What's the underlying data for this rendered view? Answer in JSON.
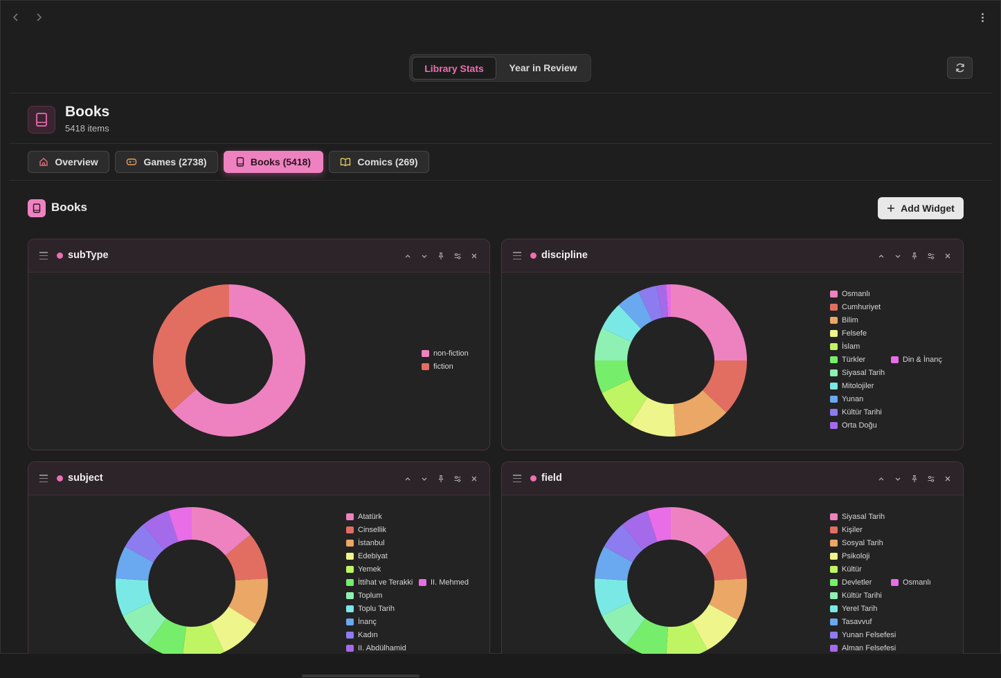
{
  "nav": {
    "back_icon": "chevron-left-icon",
    "forward_icon": "chevron-right-icon",
    "menu_icon": "more-vertical-icon"
  },
  "view_toggle": {
    "active": "Library Stats",
    "inactive": "Year in Review"
  },
  "header": {
    "title": "Books",
    "count": "5418 items"
  },
  "tabs": [
    {
      "label": "Overview",
      "icon": "home-icon"
    },
    {
      "label": "Games (2738)",
      "icon": "gamepad-icon"
    },
    {
      "label": "Books (5418)",
      "icon": "book-icon",
      "active": true
    },
    {
      "label": "Comics (269)",
      "icon": "open-book-icon"
    }
  ],
  "section": {
    "title": "Books",
    "add_widget": "Add Widget"
  },
  "widgets": [
    {
      "title": "subType",
      "chart_data": {
        "type": "pie",
        "donut": true,
        "categories": [
          "non-fiction",
          "fiction"
        ],
        "values": [
          63.5,
          36.5
        ],
        "colors": [
          "#ee82c0",
          "#e26e62"
        ]
      },
      "legend": [
        "non-fiction",
        "fiction"
      ]
    },
    {
      "title": "discipline",
      "chart_data": {
        "type": "pie",
        "donut": true,
        "categories": [
          "Osmanlı",
          "Cumhuriyet",
          "Bilim",
          "Felsefe",
          "İslam",
          "Türkler",
          "Siyasal Tarih",
          "Mitolojiler",
          "Yunan",
          "Kültür Tarihi",
          "Orta Doğu",
          "Din & İnanç"
        ],
        "values": [
          25,
          12,
          12,
          10,
          9,
          7,
          7,
          6,
          5,
          4,
          2,
          1
        ],
        "colors": [
          "#ee82c0",
          "#e26e62",
          "#eba766",
          "#eef58a",
          "#bff563",
          "#77ed6c",
          "#8ff0b4",
          "#7ae9e6",
          "#6aa8ef",
          "#8c7cef",
          "#a56ae9",
          "#e86de6"
        ]
      },
      "legend": [
        "Osmanlı",
        "Cumhuriyet",
        "Bilim",
        "Felsefe",
        "İslam",
        "Türkler",
        "Siyasal Tarih",
        "Mitolojiler",
        "Yunan",
        "Kültür Tarihi",
        "Orta Doğu"
      ],
      "legend_extra": "Din & İnanç"
    },
    {
      "title": "subject",
      "chart_data": {
        "type": "pie",
        "donut": true,
        "categories": [
          "Atatürk",
          "Cinsellik",
          "İstanbul",
          "Edebiyat",
          "Yemek",
          "İttihat ve Terakki",
          "Toplum",
          "Toplu Tarih",
          "İnanç",
          "Kadın",
          "II. Abdülhamid",
          "II. Mehmed"
        ],
        "values": [
          14,
          10,
          10,
          9,
          9,
          8,
          8,
          8,
          7,
          6,
          6,
          5
        ],
        "colors": [
          "#ee82c0",
          "#e26e62",
          "#eba766",
          "#eef58a",
          "#bff563",
          "#77ed6c",
          "#8ff0b4",
          "#7ae9e6",
          "#6aa8ef",
          "#8c7cef",
          "#a56ae9",
          "#e86de6"
        ]
      },
      "legend": [
        "Atatürk",
        "Cinsellik",
        "İstanbul",
        "Edebiyat",
        "Yemek",
        "İttihat ve Terakki",
        "Toplum",
        "Toplu Tarih",
        "İnanç",
        "Kadın",
        "II. Abdülhamid"
      ],
      "legend_extra": "II. Mehmed"
    },
    {
      "title": "field",
      "chart_data": {
        "type": "pie",
        "donut": true,
        "categories": [
          "Siyasal Tarih",
          "Kişiler",
          "Sosyal Tarih",
          "Psikoloji",
          "Kültür",
          "Devletler",
          "Kültür Tarihi",
          "Yerel Tarih",
          "Tasavvuf",
          "Yunan Felsefesi",
          "Alman Felsefesi",
          "Osmanlı"
        ],
        "values": [
          14,
          10,
          9,
          9,
          9,
          9,
          8,
          8,
          7,
          6,
          6,
          5
        ],
        "colors": [
          "#ee82c0",
          "#e26e62",
          "#eba766",
          "#eef58a",
          "#bff563",
          "#77ed6c",
          "#8ff0b4",
          "#7ae9e6",
          "#6aa8ef",
          "#8c7cef",
          "#a56ae9",
          "#e86de6"
        ]
      },
      "legend": [
        "Siyasal Tarih",
        "Kişiler",
        "Sosyal Tarih",
        "Psikoloji",
        "Kültür",
        "Devletler",
        "Kültür Tarihi",
        "Yerel Tarih",
        "Tasavvuf",
        "Yunan Felsefesi",
        "Alman Felsefesi"
      ],
      "legend_extra": "Osmanlı"
    }
  ],
  "widget_controls": [
    "chevron-up-icon",
    "chevron-down-icon",
    "pin-icon",
    "settings-sliders-icon",
    "close-icon"
  ]
}
